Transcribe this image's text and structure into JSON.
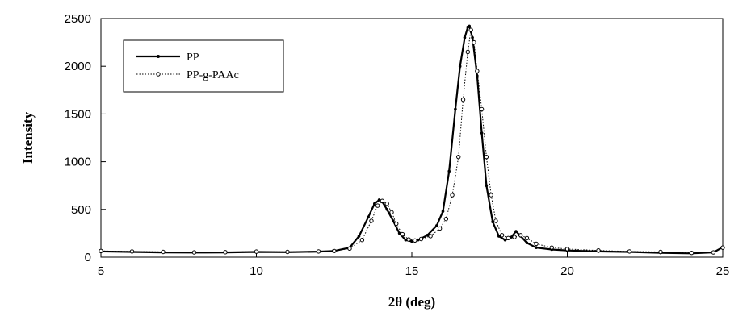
{
  "chart_data": {
    "type": "line",
    "title": "",
    "xlabel": "2θ (deg)",
    "ylabel": "Intensity",
    "xlim": [
      5,
      25
    ],
    "ylim": [
      0,
      2500
    ],
    "xticks": [
      5,
      10,
      15,
      20,
      25
    ],
    "yticks": [
      0,
      500,
      1000,
      1500,
      2000,
      2500
    ],
    "grid": false,
    "legend_position": "top-left",
    "series": [
      {
        "name": "PP",
        "style": "solid line with dot markers",
        "color": "#000000",
        "x": [
          5,
          6,
          7,
          8,
          9,
          10,
          11,
          12,
          12.5,
          13,
          13.3,
          13.6,
          13.8,
          13.95,
          14.05,
          14.2,
          14.4,
          14.6,
          14.8,
          15.0,
          15.2,
          15.5,
          15.8,
          16.0,
          16.2,
          16.4,
          16.55,
          16.7,
          16.8,
          16.85,
          16.95,
          17.1,
          17.25,
          17.4,
          17.6,
          17.8,
          18.0,
          18.2,
          18.35,
          18.5,
          18.7,
          19.0,
          19.5,
          20,
          21,
          22,
          23,
          24,
          24.7,
          25
        ],
        "y": [
          60,
          55,
          50,
          48,
          50,
          55,
          52,
          58,
          65,
          100,
          220,
          420,
          560,
          600,
          580,
          500,
          380,
          250,
          180,
          165,
          180,
          230,
          330,
          480,
          900,
          1550,
          2000,
          2300,
          2410,
          2420,
          2300,
          1900,
          1300,
          750,
          370,
          220,
          180,
          210,
          270,
          220,
          150,
          100,
          80,
          70,
          60,
          55,
          45,
          40,
          50,
          105
        ]
      },
      {
        "name": "PP-g-PAAc",
        "style": "dotted line with open circle markers",
        "color": "#000000",
        "x": [
          5,
          6,
          7,
          8,
          9,
          10,
          11,
          12,
          12.5,
          13,
          13.4,
          13.7,
          13.9,
          14.05,
          14.2,
          14.35,
          14.5,
          14.7,
          14.9,
          15.1,
          15.3,
          15.6,
          15.9,
          16.1,
          16.3,
          16.5,
          16.65,
          16.8,
          16.9,
          17.0,
          17.1,
          17.25,
          17.4,
          17.55,
          17.7,
          17.9,
          18.1,
          18.3,
          18.5,
          18.7,
          19.0,
          19.5,
          20,
          21,
          22,
          23,
          24,
          24.7,
          25
        ],
        "y": [
          65,
          60,
          55,
          50,
          52,
          58,
          55,
          60,
          65,
          90,
          180,
          380,
          540,
          590,
          560,
          470,
          350,
          240,
          185,
          175,
          190,
          220,
          300,
          400,
          650,
          1050,
          1650,
          2150,
          2380,
          2250,
          1950,
          1550,
          1050,
          650,
          380,
          230,
          200,
          210,
          230,
          200,
          140,
          100,
          85,
          70,
          60,
          55,
          45,
          50,
          100
        ]
      }
    ]
  }
}
